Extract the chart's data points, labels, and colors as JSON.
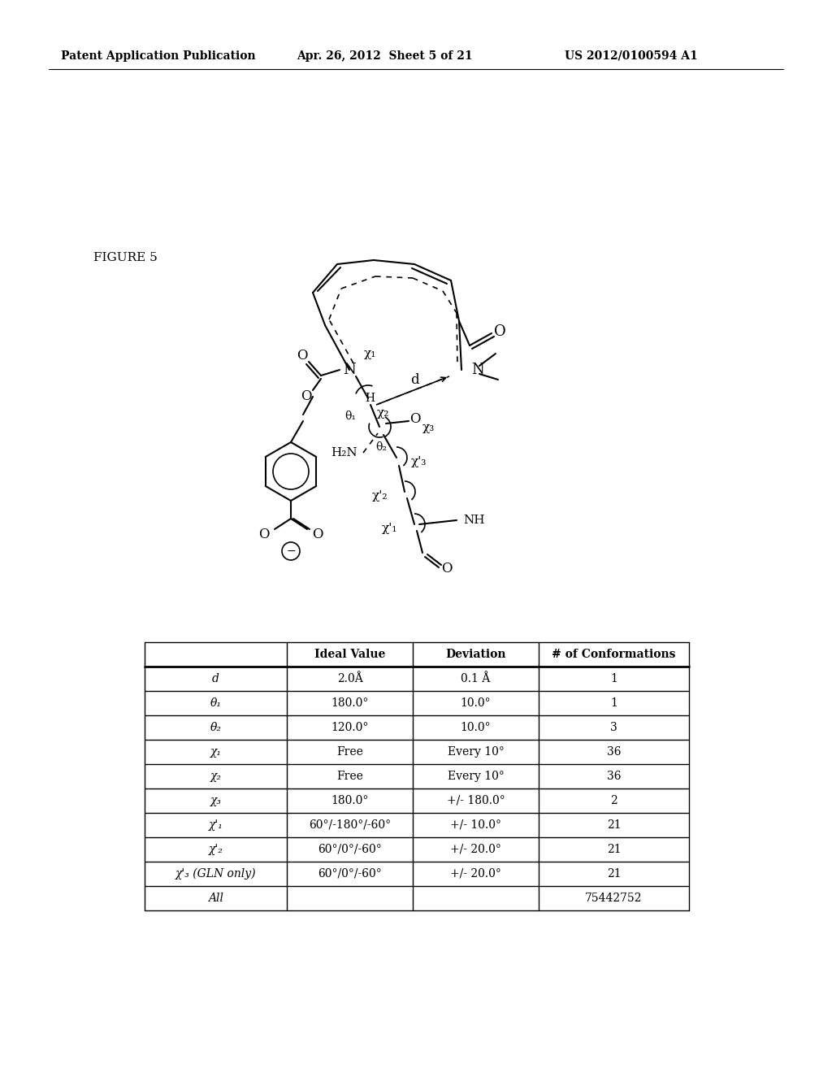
{
  "header_left": "Patent Application Publication",
  "header_mid": "Apr. 26, 2012  Sheet 5 of 21",
  "header_right": "US 2012/0100594 A1",
  "figure_label": "FIGURE 5",
  "table_headers": [
    "",
    "Ideal Value",
    "Deviation",
    "# of Conformations"
  ],
  "table_rows": [
    [
      "d",
      "2.0Å",
      "0.1 Å",
      "1"
    ],
    [
      "θ₁",
      "180.0°",
      "10.0°",
      "1"
    ],
    [
      "θ₂",
      "120.0°",
      "10.0°",
      "3"
    ],
    [
      "χ₁",
      "Free",
      "Every 10°",
      "36"
    ],
    [
      "χ₂",
      "Free",
      "Every 10°",
      "36"
    ],
    [
      "χ₃",
      "180.0°",
      "+/- 180.0°",
      "2"
    ],
    [
      "χ'₁",
      "60°/-180°/-60°",
      "+/- 10.0°",
      "21"
    ],
    [
      "χ'₂",
      "60°/0°/-60°",
      "+/- 20.0°",
      "21"
    ],
    [
      "χ'₃ (GLN only)",
      "60°/0°/-60°",
      "+/- 20.0°",
      "21"
    ],
    [
      "All",
      "",
      "",
      "75442752"
    ]
  ],
  "bg_color": "#ffffff",
  "text_color": "#000000"
}
